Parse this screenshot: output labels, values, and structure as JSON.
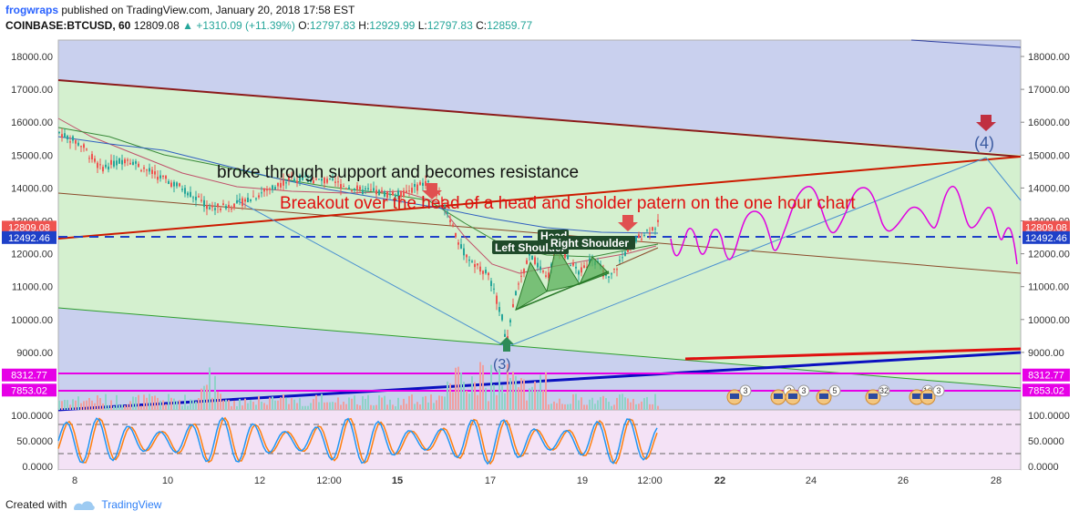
{
  "header": {
    "author": "frogwraps",
    "published": "published on TradingView.com, January 20, 2018 17:58 EST",
    "symbol": "COINBASE:BTCUSD, 60",
    "last": "12809.08",
    "change": "▲ +1310.09 (+11.39%)",
    "o_label": "O:",
    "o": "12797.83",
    "h_label": "H:",
    "h": "12929.99",
    "l_label": "L:",
    "l": "12797.83",
    "c_label": "C:",
    "c": "12859.77"
  },
  "footer": {
    "created_with": "Created with",
    "brand": "TradingView"
  },
  "colors": {
    "up": "#26a69a",
    "down": "#ef5350",
    "channel_bg": "#c9d0ee",
    "channel_fill": "#d4f0cf",
    "magenta": "#e600e6",
    "stoch_k": "#2196f3",
    "stoch_d": "#ff7f0e"
  },
  "chart_data": {
    "type": "candlestick",
    "y_axis_ticks": [
      "18000.00",
      "17000.00",
      "16000.00",
      "15000.00",
      "14000.00",
      "13000.00",
      "12000.00",
      "11000.00",
      "10000.00",
      "9000.00"
    ],
    "x_axis_ticks": [
      "8",
      "10",
      "12",
      "12:00",
      "15",
      "17",
      "19",
      "12:00",
      "22",
      "24",
      "26",
      "28"
    ],
    "price_labels": [
      {
        "value": "12809.08",
        "price": 12809.08,
        "color": "#ef5350"
      },
      {
        "value": "12492.46",
        "price": 12492.46,
        "color": "#1e40c8"
      },
      {
        "value": "8312.77",
        "price": 8312.77,
        "color": "#e600e6"
      },
      {
        "value": "7853.02",
        "price": 7853.02,
        "color": "#e600e6"
      }
    ],
    "annotations": {
      "broke_support": "broke through support and becomes resistance",
      "breakout": "Breakout over the head of a head and sholder patern on the one hour chart",
      "left_shoulder": "Left Shoulder",
      "head": "Head",
      "right_shoulder": "Right Shoulder",
      "wave4": "(4)",
      "wave3": "(3)"
    },
    "event_badges": [
      "3",
      "2",
      "3",
      "5",
      "32",
      "10",
      "3"
    ],
    "stoch_axis": [
      "100.0000",
      "50.0000",
      "0.0000"
    ]
  }
}
